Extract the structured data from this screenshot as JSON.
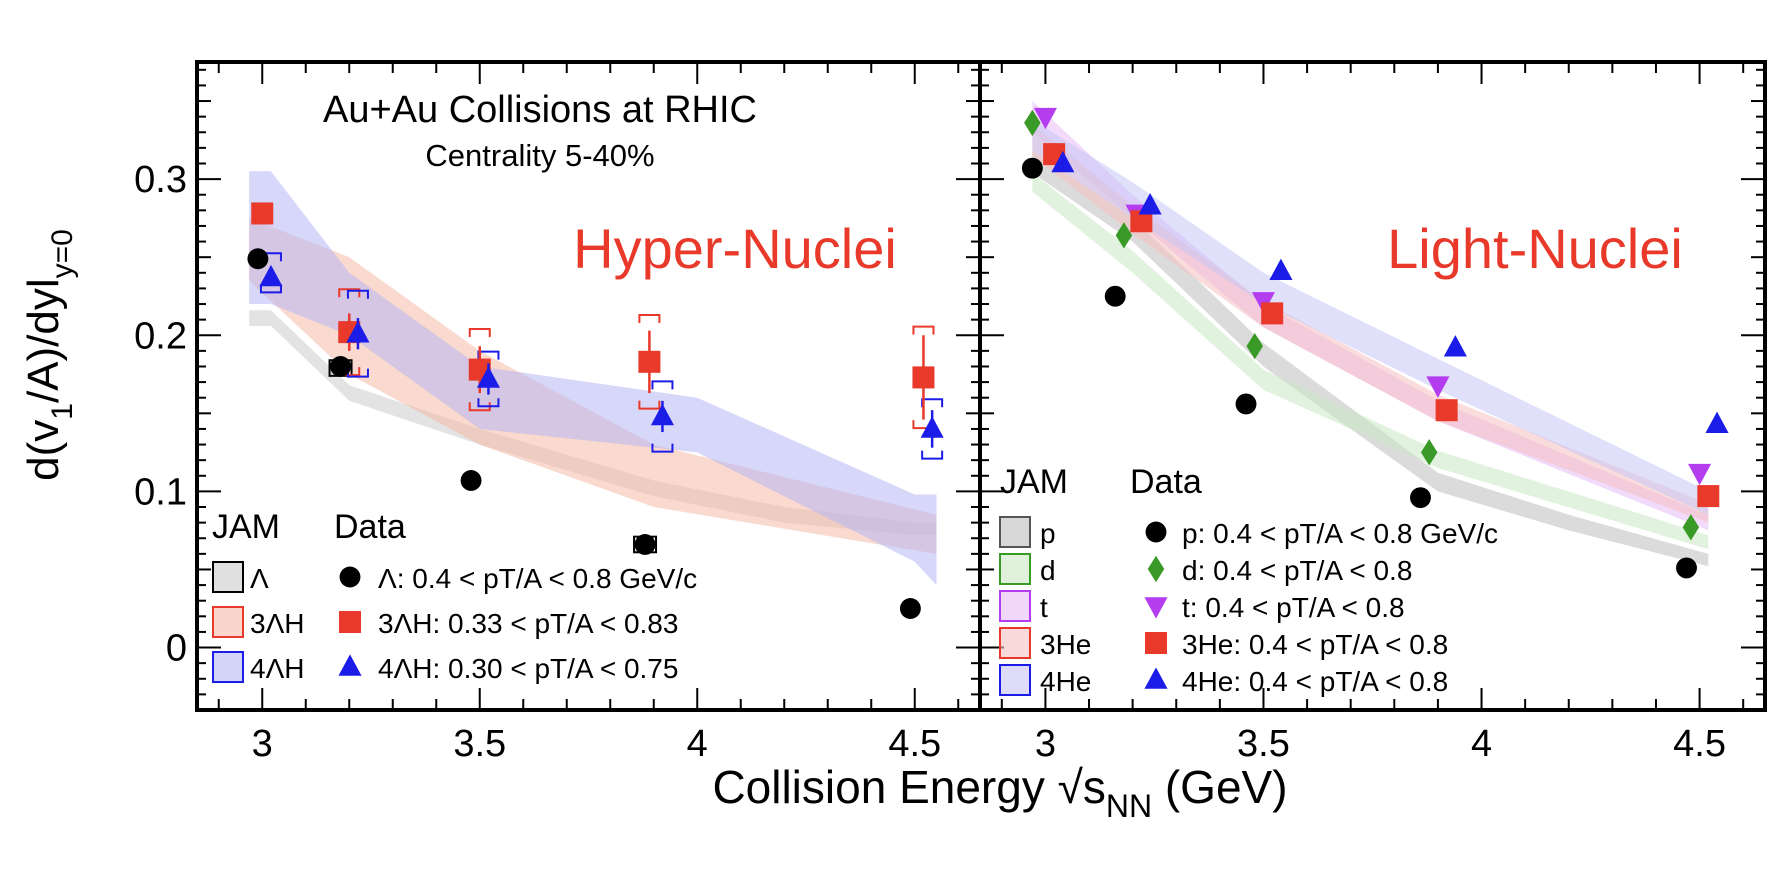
{
  "ylabel": "d(v1/A)/dy|y=0",
  "xlabel": "Collision Energy √sNN (GeV)",
  "chart_data": [
    {
      "type": "scatter",
      "panel": "left",
      "title": "Au+Au Collisions at RHIC",
      "subtitle": "Centrality 5-40%",
      "panel_label": "Hyper-Nuclei",
      "xlim": [
        2.85,
        4.65
      ],
      "ylim": [
        -0.04,
        0.375
      ],
      "xticks": [
        "3",
        "3.5",
        "4",
        "4.5"
      ],
      "yticks": [
        "0",
        "0.1",
        "0.2",
        "0.3"
      ],
      "legend": {
        "jam_header": "JAM",
        "data_header": "Data",
        "placement": "bottom-left"
      },
      "series": [
        {
          "name": "Λ: 0.4 < pT/A < 0.8 GeV/c",
          "jam_label": "Λ",
          "marker": "circle",
          "color": "#000000",
          "points": [
            {
              "x": 2.99,
              "y": 0.249
            },
            {
              "x": 3.18,
              "y": 0.18
            },
            {
              "x": 3.48,
              "y": 0.107
            },
            {
              "x": 3.88,
              "y": 0.066
            },
            {
              "x": 4.49,
              "y": 0.025
            }
          ],
          "sys_boxes": [
            {
              "x": 3.18,
              "y": 0.179,
              "h": 0.01
            },
            {
              "x": 3.88,
              "y": 0.066,
              "h": 0.01
            }
          ],
          "jam_band": {
            "fill": "#cccccc",
            "x": [
              2.97,
              3.02,
              3.2,
              3.5,
              3.9,
              4.2,
              4.5,
              4.55
            ],
            "lo": [
              0.206,
              0.206,
              0.158,
              0.13,
              0.097,
              0.08,
              0.072,
              0.072
            ],
            "hi": [
              0.216,
              0.216,
              0.168,
              0.14,
              0.107,
              0.09,
              0.08,
              0.08
            ]
          }
        },
        {
          "name": "3ΛH: 0.33 < pT/A < 0.83",
          "jam_label": "3ΛH",
          "marker": "square",
          "color": "#e8392a",
          "points": [
            {
              "x": 3.0,
              "y": 0.278,
              "err": 0.0
            },
            {
              "x": 3.2,
              "y": 0.202,
              "err": 0.012
            },
            {
              "x": 3.5,
              "y": 0.178,
              "err": 0.015
            },
            {
              "x": 3.89,
              "y": 0.183,
              "err": 0.02
            },
            {
              "x": 4.52,
              "y": 0.173,
              "err": 0.027
            }
          ],
          "sys_boxes": [
            {
              "x": 3.2,
              "y": 0.202,
              "h": 0.055
            },
            {
              "x": 3.5,
              "y": 0.178,
              "h": 0.052
            },
            {
              "x": 3.89,
              "y": 0.183,
              "h": 0.06
            },
            {
              "x": 4.52,
              "y": 0.173,
              "h": 0.065
            }
          ],
          "jam_band": {
            "fill": "#f5b9a8",
            "x": [
              2.97,
              3.2,
              3.5,
              3.9,
              4.55
            ],
            "lo": [
              0.235,
              0.175,
              0.13,
              0.09,
              0.06
            ],
            "hi": [
              0.275,
              0.25,
              0.19,
              0.13,
              0.085
            ]
          }
        },
        {
          "name": "4ΛH: 0.30 < pT/A < 0.75",
          "jam_label": "4ΛH",
          "marker": "triangle",
          "color": "#1c1ce8",
          "points": [
            {
              "x": 3.02,
              "y": 0.237,
              "err": 0.0
            },
            {
              "x": 3.22,
              "y": 0.201,
              "err": 0.01
            },
            {
              "x": 3.52,
              "y": 0.172,
              "err": 0.01
            },
            {
              "x": 3.92,
              "y": 0.148,
              "err": 0.01
            },
            {
              "x": 4.54,
              "y": 0.14,
              "err": 0.012
            }
          ],
          "sys_boxes": [
            {
              "x": 3.02,
              "y": 0.24,
              "h": 0.025
            },
            {
              "x": 3.22,
              "y": 0.201,
              "h": 0.055
            },
            {
              "x": 3.52,
              "y": 0.172,
              "h": 0.035
            },
            {
              "x": 3.92,
              "y": 0.148,
              "h": 0.045
            },
            {
              "x": 4.54,
              "y": 0.14,
              "h": 0.038
            }
          ],
          "jam_band": {
            "fill": "#b7b7f5",
            "x": [
              2.97,
              3.02,
              3.2,
              3.5,
              4.0,
              4.5,
              4.55
            ],
            "lo": [
              0.22,
              0.22,
              0.2,
              0.14,
              0.125,
              0.055,
              0.04
            ],
            "hi": [
              0.305,
              0.305,
              0.24,
              0.18,
              0.16,
              0.098,
              0.098
            ]
          }
        }
      ]
    },
    {
      "type": "scatter",
      "panel": "right",
      "panel_label": "Light-Nuclei",
      "xlim": [
        2.85,
        4.65
      ],
      "ylim": [
        -0.04,
        0.375
      ],
      "xticks": [
        "3",
        "3.5",
        "4",
        "4.5"
      ],
      "legend": {
        "jam_header": "JAM",
        "data_header": "Data",
        "placement": "bottom-left"
      },
      "series": [
        {
          "name": "p: 0.4 < pT/A < 0.8 GeV/c",
          "jam_label": "p",
          "marker": "circle",
          "color": "#000000",
          "jam_color": "#555555",
          "points": [
            {
              "x": 2.97,
              "y": 0.307
            },
            {
              "x": 3.16,
              "y": 0.225
            },
            {
              "x": 3.46,
              "y": 0.156
            },
            {
              "x": 3.86,
              "y": 0.096
            },
            {
              "x": 4.47,
              "y": 0.051
            }
          ],
          "jam_band": {
            "fill": "#bdbdbd",
            "x": [
              2.97,
              3.2,
              3.5,
              3.9,
              4.2,
              4.52
            ],
            "lo": [
              0.304,
              0.26,
              0.18,
              0.1,
              0.075,
              0.052
            ],
            "hi": [
              0.318,
              0.275,
              0.195,
              0.112,
              0.085,
              0.06
            ]
          }
        },
        {
          "name": "d: 0.4 < pT/A < 0.8",
          "jam_label": "d",
          "marker": "diamond",
          "color": "#3a9a28",
          "points": [
            {
              "x": 2.97,
              "y": 0.336
            },
            {
              "x": 3.18,
              "y": 0.264
            },
            {
              "x": 3.48,
              "y": 0.193
            },
            {
              "x": 3.88,
              "y": 0.125
            },
            {
              "x": 4.48,
              "y": 0.077
            }
          ],
          "jam_band": {
            "fill": "#c9e8c3",
            "x": [
              2.97,
              3.2,
              3.5,
              3.9,
              4.52
            ],
            "lo": [
              0.292,
              0.24,
              0.165,
              0.115,
              0.063
            ],
            "hi": [
              0.304,
              0.254,
              0.178,
              0.126,
              0.072
            ]
          }
        },
        {
          "name": "t: 0.4 < pT/A < 0.8",
          "jam_label": "t",
          "marker": "triangle-down",
          "color": "#b43df0",
          "points": [
            {
              "x": 3.0,
              "y": 0.34
            },
            {
              "x": 3.21,
              "y": 0.278
            },
            {
              "x": 3.5,
              "y": 0.222
            },
            {
              "x": 3.9,
              "y": 0.168
            },
            {
              "x": 4.5,
              "y": 0.112
            }
          ],
          "jam_band": {
            "fill": "#e8bcf5",
            "x": [
              2.97,
              3.2,
              3.5,
              3.9,
              4.52
            ],
            "lo": [
              0.33,
              0.275,
              0.205,
              0.145,
              0.075
            ],
            "hi": [
              0.35,
              0.29,
              0.22,
              0.158,
              0.085
            ]
          }
        },
        {
          "name": "3He: 0.4 < pT/A < 0.8",
          "jam_label": "3He",
          "marker": "square",
          "color": "#e8392a",
          "points": [
            {
              "x": 3.02,
              "y": 0.316
            },
            {
              "x": 3.22,
              "y": 0.273
            },
            {
              "x": 3.52,
              "y": 0.214
            },
            {
              "x": 3.92,
              "y": 0.152
            },
            {
              "x": 4.52,
              "y": 0.097
            }
          ],
          "jam_band": {
            "fill": "#f5c0c0",
            "x": [
              2.97,
              3.2,
              3.5,
              3.9,
              4.52
            ],
            "lo": [
              0.315,
              0.265,
              0.205,
              0.145,
              0.08
            ],
            "hi": [
              0.335,
              0.283,
              0.222,
              0.162,
              0.092
            ]
          }
        },
        {
          "name": "4He: 0.4 < pT/A < 0.8",
          "jam_label": "4He",
          "marker": "triangle",
          "color": "#1c1ce8",
          "points": [
            {
              "x": 3.04,
              "y": 0.31
            },
            {
              "x": 3.24,
              "y": 0.283
            },
            {
              "x": 3.54,
              "y": 0.241
            },
            {
              "x": 3.94,
              "y": 0.192
            },
            {
              "x": 4.54,
              "y": 0.143
            }
          ],
          "jam_band": {
            "fill": "#c6c6f5",
            "x": [
              2.97,
              3.2,
              3.5,
              3.9,
              4.52
            ],
            "lo": [
              0.318,
              0.275,
              0.22,
              0.165,
              0.085
            ],
            "hi": [
              0.338,
              0.298,
              0.24,
              0.185,
              0.1
            ]
          }
        }
      ]
    }
  ]
}
